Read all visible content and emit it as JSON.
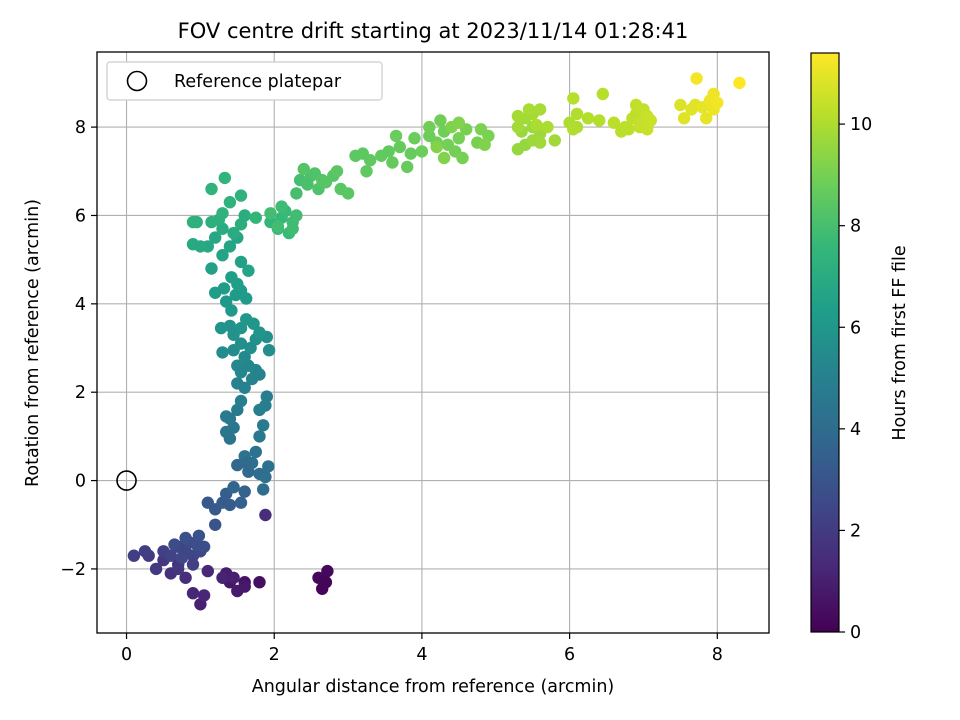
{
  "chart_data": {
    "type": "scatter",
    "title": "FOV centre drift starting at 2023/11/14 01:28:41",
    "xlabel": "Angular distance from reference (arcmin)",
    "ylabel": "Rotation from reference (arcmin)",
    "xlim": [
      -0.4,
      8.7
    ],
    "ylim": [
      -3.45,
      9.7
    ],
    "xticks": [
      0,
      2,
      4,
      6,
      8
    ],
    "yticks": [
      -2,
      0,
      2,
      4,
      6,
      8
    ],
    "xtick_labels": [
      "0",
      "2",
      "4",
      "6",
      "8"
    ],
    "ytick_labels": [
      "−2",
      "0",
      "2",
      "4",
      "6",
      "8"
    ],
    "grid": true,
    "legend": {
      "placement": "top-left",
      "label": "Reference platepar"
    },
    "reference_point": {
      "x": 0,
      "y": 0
    },
    "colorbar": {
      "label": "Hours from first FF file",
      "range": [
        0,
        11.4
      ],
      "ticks": [
        0,
        2,
        4,
        6,
        8,
        10
      ],
      "tick_labels": [
        "0",
        "2",
        "4",
        "6",
        "8",
        "10"
      ],
      "colormap": "viridis"
    },
    "colormap_stops": [
      "#440154",
      "#482878",
      "#3e4989",
      "#31688e",
      "#26828e",
      "#1f9e89",
      "#35b779",
      "#6ece58",
      "#b5de2b",
      "#fde725"
    ],
    "points": [
      [
        2.65,
        -2.45,
        0.1
      ],
      [
        2.7,
        -2.3,
        0.15
      ],
      [
        2.6,
        -2.2,
        0.2
      ],
      [
        2.72,
        -2.05,
        0.25
      ],
      [
        1.8,
        -2.3,
        0.5
      ],
      [
        1.6,
        -2.3,
        0.6
      ],
      [
        1.4,
        -2.3,
        0.7
      ],
      [
        1.5,
        -2.5,
        0.8
      ],
      [
        1.35,
        -2.1,
        0.9
      ],
      [
        1.45,
        -2.2,
        1.0
      ],
      [
        1.0,
        -2.8,
        1.0
      ],
      [
        0.9,
        -2.55,
        1.2
      ],
      [
        1.05,
        -2.6,
        1.25
      ],
      [
        1.1,
        -2.05,
        1.3
      ],
      [
        1.6,
        -2.4,
        0.75
      ],
      [
        1.3,
        -2.2,
        1.1
      ],
      [
        1.88,
        -0.78,
        1.5
      ],
      [
        0.8,
        -2.2,
        1.5
      ],
      [
        0.6,
        -2.1,
        1.6
      ],
      [
        0.7,
        -1.9,
        1.7
      ],
      [
        0.5,
        -1.8,
        1.8
      ],
      [
        0.4,
        -2.0,
        1.9
      ],
      [
        0.3,
        -1.7,
        2.0
      ],
      [
        0.1,
        -1.7,
        2.1
      ],
      [
        0.25,
        -1.6,
        2.1
      ],
      [
        0.5,
        -1.6,
        2.2
      ],
      [
        0.6,
        -1.7,
        2.3
      ],
      [
        0.7,
        -1.5,
        2.3
      ],
      [
        0.8,
        -1.6,
        2.4
      ],
      [
        0.9,
        -1.7,
        2.4
      ],
      [
        1.0,
        -1.6,
        2.5
      ],
      [
        0.75,
        -1.75,
        2.5
      ],
      [
        0.85,
        -1.4,
        2.6
      ],
      [
        0.65,
        -1.45,
        2.6
      ],
      [
        1.05,
        -1.5,
        2.7
      ],
      [
        0.95,
        -1.45,
        2.75
      ],
      [
        0.8,
        -1.3,
        2.8
      ],
      [
        0.98,
        -1.25,
        2.9
      ],
      [
        0.9,
        -1.9,
        2.2
      ],
      [
        0.7,
        -2.0,
        1.85
      ],
      [
        1.2,
        -1.0,
        3.0
      ],
      [
        1.1,
        -0.5,
        3.1
      ],
      [
        1.2,
        -0.65,
        3.2
      ],
      [
        1.3,
        -0.5,
        3.3
      ],
      [
        1.4,
        -0.55,
        3.3
      ],
      [
        1.35,
        -0.3,
        3.4
      ],
      [
        1.55,
        -0.5,
        3.5
      ],
      [
        1.6,
        -0.25,
        3.6
      ],
      [
        1.45,
        -0.15,
        3.7
      ],
      [
        1.5,
        0.35,
        3.8
      ],
      [
        1.65,
        0.2,
        3.9
      ],
      [
        1.8,
        0.15,
        4.0
      ],
      [
        1.85,
        -0.2,
        4.0
      ],
      [
        1.7,
        0.4,
        4.1
      ],
      [
        1.88,
        0.08,
        4.2
      ],
      [
        1.92,
        0.32,
        4.2
      ],
      [
        1.6,
        0.55,
        4.3
      ],
      [
        1.75,
        0.65,
        4.3
      ],
      [
        1.62,
        0.4,
        3.95
      ],
      [
        1.4,
        0.95,
        4.4
      ],
      [
        1.35,
        1.1,
        4.5
      ],
      [
        1.45,
        1.2,
        4.5
      ],
      [
        1.4,
        1.4,
        4.6
      ],
      [
        1.5,
        1.6,
        4.7
      ],
      [
        1.35,
        1.45,
        4.7
      ],
      [
        1.8,
        1.0,
        4.6
      ],
      [
        1.85,
        1.25,
        4.7
      ],
      [
        1.88,
        1.7,
        4.8
      ],
      [
        1.9,
        1.9,
        4.8
      ],
      [
        1.8,
        1.6,
        4.9
      ],
      [
        1.55,
        1.8,
        4.9
      ],
      [
        1.5,
        2.2,
        5.0
      ],
      [
        1.6,
        2.1,
        5.0
      ],
      [
        1.7,
        2.3,
        5.1
      ],
      [
        1.75,
        2.5,
        5.2
      ],
      [
        1.65,
        2.6,
        5.2
      ],
      [
        1.8,
        2.4,
        5.1
      ],
      [
        1.55,
        2.45,
        5.3
      ],
      [
        1.5,
        2.6,
        5.3
      ],
      [
        1.6,
        2.8,
        5.4
      ],
      [
        1.45,
        2.95,
        5.5
      ],
      [
        1.3,
        2.9,
        5.5
      ],
      [
        1.55,
        3.1,
        5.6
      ],
      [
        1.68,
        3.0,
        5.6
      ],
      [
        1.75,
        3.2,
        5.7
      ],
      [
        1.9,
        3.25,
        5.7
      ],
      [
        1.93,
        2.95,
        5.6
      ],
      [
        1.45,
        3.3,
        5.8
      ],
      [
        1.4,
        3.5,
        5.8
      ],
      [
        1.28,
        3.45,
        5.9
      ],
      [
        1.55,
        3.45,
        5.9
      ],
      [
        1.62,
        3.65,
        6.0
      ],
      [
        1.72,
        3.55,
        6.0
      ],
      [
        1.8,
        3.35,
        5.9
      ],
      [
        1.42,
        3.85,
        6.1
      ],
      [
        1.35,
        4.05,
        6.1
      ],
      [
        1.48,
        4.2,
        6.2
      ],
      [
        1.55,
        4.3,
        6.2
      ],
      [
        1.2,
        4.25,
        6.3
      ],
      [
        1.32,
        4.35,
        6.3
      ],
      [
        1.62,
        4.12,
        6.15
      ],
      [
        1.42,
        4.6,
        6.4
      ],
      [
        1.5,
        4.45,
        6.4
      ],
      [
        1.15,
        4.8,
        6.5
      ],
      [
        1.55,
        4.95,
        6.5
      ],
      [
        1.65,
        4.75,
        6.6
      ],
      [
        1.3,
        5.1,
        6.6
      ],
      [
        1.4,
        5.3,
        6.7
      ],
      [
        1.5,
        5.5,
        6.7
      ],
      [
        1.2,
        5.5,
        6.8
      ],
      [
        1.1,
        5.3,
        6.8
      ],
      [
        1.0,
        5.3,
        6.9
      ],
      [
        0.9,
        5.35,
        6.9
      ],
      [
        1.3,
        5.7,
        7.0
      ],
      [
        1.45,
        5.6,
        7.0
      ],
      [
        1.55,
        5.8,
        7.1
      ],
      [
        1.6,
        6.0,
        7.1
      ],
      [
        1.25,
        5.9,
        7.2
      ],
      [
        1.15,
        5.85,
        7.2
      ],
      [
        0.95,
        5.85,
        7.2
      ],
      [
        0.9,
        5.85,
        7.25
      ],
      [
        1.3,
        6.05,
        7.3
      ],
      [
        1.4,
        6.3,
        7.3
      ],
      [
        1.55,
        6.45,
        7.35
      ],
      [
        1.15,
        6.6,
        7.4
      ],
      [
        1.33,
        6.85,
        7.4
      ],
      [
        1.75,
        5.95,
        7.5
      ],
      [
        1.95,
        5.85,
        7.5
      ],
      [
        2.05,
        5.7,
        7.6
      ],
      [
        2.1,
        5.95,
        7.6
      ],
      [
        2.2,
        5.6,
        7.7
      ],
      [
        2.15,
        6.1,
        7.7
      ],
      [
        2.25,
        5.85,
        7.8
      ],
      [
        2.1,
        6.2,
        7.8
      ],
      [
        2.3,
        6.0,
        7.9
      ],
      [
        2.05,
        5.75,
        7.9
      ],
      [
        1.95,
        6.05,
        7.95
      ],
      [
        2.25,
        5.7,
        7.85
      ],
      [
        2.3,
        6.5,
        8.0
      ],
      [
        2.35,
        6.8,
        8.0
      ],
      [
        2.5,
        6.9,
        8.1
      ],
      [
        2.45,
        6.7,
        8.1
      ],
      [
        2.6,
        6.6,
        8.2
      ],
      [
        2.55,
        6.95,
        8.2
      ],
      [
        2.65,
        6.8,
        8.3
      ],
      [
        2.4,
        7.05,
        8.3
      ],
      [
        2.7,
        6.75,
        8.35
      ],
      [
        2.8,
        6.9,
        8.35
      ],
      [
        2.9,
        6.6,
        8.4
      ],
      [
        3.0,
        6.5,
        8.4
      ],
      [
        2.85,
        7.0,
        8.45
      ],
      [
        3.1,
        7.35,
        8.5
      ],
      [
        3.2,
        7.4,
        8.5
      ],
      [
        3.3,
        7.25,
        8.55
      ],
      [
        3.25,
        7.0,
        8.55
      ],
      [
        3.45,
        7.35,
        8.6
      ],
      [
        3.55,
        7.45,
        8.6
      ],
      [
        3.6,
        7.2,
        8.65
      ],
      [
        3.7,
        7.55,
        8.65
      ],
      [
        3.85,
        7.4,
        8.7
      ],
      [
        3.8,
        7.1,
        8.7
      ],
      [
        3.65,
        7.8,
        8.75
      ],
      [
        3.9,
        7.75,
        8.75
      ],
      [
        4.0,
        7.45,
        8.8
      ],
      [
        4.1,
        7.8,
        8.8
      ],
      [
        4.2,
        7.65,
        8.85
      ],
      [
        4.3,
        7.9,
        8.85
      ],
      [
        4.1,
        8.0,
        8.9
      ],
      [
        4.25,
        8.15,
        8.9
      ],
      [
        4.35,
        7.6,
        8.95
      ],
      [
        4.45,
        7.45,
        8.95
      ],
      [
        4.5,
        7.75,
        9.0
      ],
      [
        4.55,
        7.3,
        9.0
      ],
      [
        4.6,
        7.95,
        9.05
      ],
      [
        4.75,
        7.65,
        9.05
      ],
      [
        4.8,
        7.95,
        9.1
      ],
      [
        4.9,
        7.8,
        9.1
      ],
      [
        4.85,
        7.6,
        9.15
      ],
      [
        4.4,
        8.0,
        9.15
      ],
      [
        4.5,
        8.1,
        9.2
      ],
      [
        4.3,
        7.3,
        9.2
      ],
      [
        4.2,
        7.55,
        9.25
      ],
      [
        5.3,
        7.5,
        9.6
      ],
      [
        5.4,
        7.6,
        9.6
      ],
      [
        5.35,
        7.9,
        9.65
      ],
      [
        5.5,
        8.0,
        9.65
      ],
      [
        5.6,
        7.85,
        9.7
      ],
      [
        5.5,
        7.7,
        9.7
      ],
      [
        5.6,
        7.65,
        9.75
      ],
      [
        5.8,
        7.7,
        9.75
      ],
      [
        5.3,
        8.0,
        9.8
      ],
      [
        5.4,
        8.2,
        9.8
      ],
      [
        5.3,
        8.25,
        9.85
      ],
      [
        5.5,
        8.3,
        9.85
      ],
      [
        5.45,
        8.4,
        9.9
      ],
      [
        5.6,
        8.4,
        9.9
      ],
      [
        5.7,
        8.0,
        9.95
      ],
      [
        5.55,
        8.05,
        9.95
      ],
      [
        6.0,
        8.1,
        10.0
      ],
      [
        6.1,
        8.0,
        10.0
      ],
      [
        6.05,
        7.95,
        10.05
      ],
      [
        6.1,
        8.3,
        10.05
      ],
      [
        6.25,
        8.2,
        10.1
      ],
      [
        6.4,
        8.15,
        10.1
      ],
      [
        6.05,
        8.65,
        10.15
      ],
      [
        6.45,
        8.75,
        10.15
      ],
      [
        6.6,
        8.1,
        10.2
      ],
      [
        6.7,
        7.9,
        10.2
      ],
      [
        6.75,
        8.0,
        10.25
      ],
      [
        6.8,
        7.95,
        10.25
      ],
      [
        6.85,
        8.2,
        10.3
      ],
      [
        6.9,
        8.3,
        10.3
      ],
      [
        6.95,
        8.0,
        10.35
      ],
      [
        6.9,
        8.5,
        10.35
      ],
      [
        7.0,
        8.4,
        10.4
      ],
      [
        6.95,
        8.1,
        10.4
      ],
      [
        7.05,
        8.25,
        10.45
      ],
      [
        7.05,
        7.95,
        10.45
      ],
      [
        7.1,
        8.15,
        10.5
      ],
      [
        7.5,
        8.5,
        10.8
      ],
      [
        7.55,
        8.2,
        10.85
      ],
      [
        7.65,
        8.4,
        10.9
      ],
      [
        7.7,
        8.5,
        10.9
      ],
      [
        7.8,
        8.45,
        11.0
      ],
      [
        7.85,
        8.2,
        11.0
      ],
      [
        7.9,
        8.6,
        11.1
      ],
      [
        7.95,
        8.4,
        11.1
      ],
      [
        7.95,
        8.75,
        11.15
      ],
      [
        8.0,
        8.55,
        11.2
      ],
      [
        7.72,
        9.1,
        11.2
      ],
      [
        8.3,
        9.0,
        11.4
      ]
    ]
  }
}
